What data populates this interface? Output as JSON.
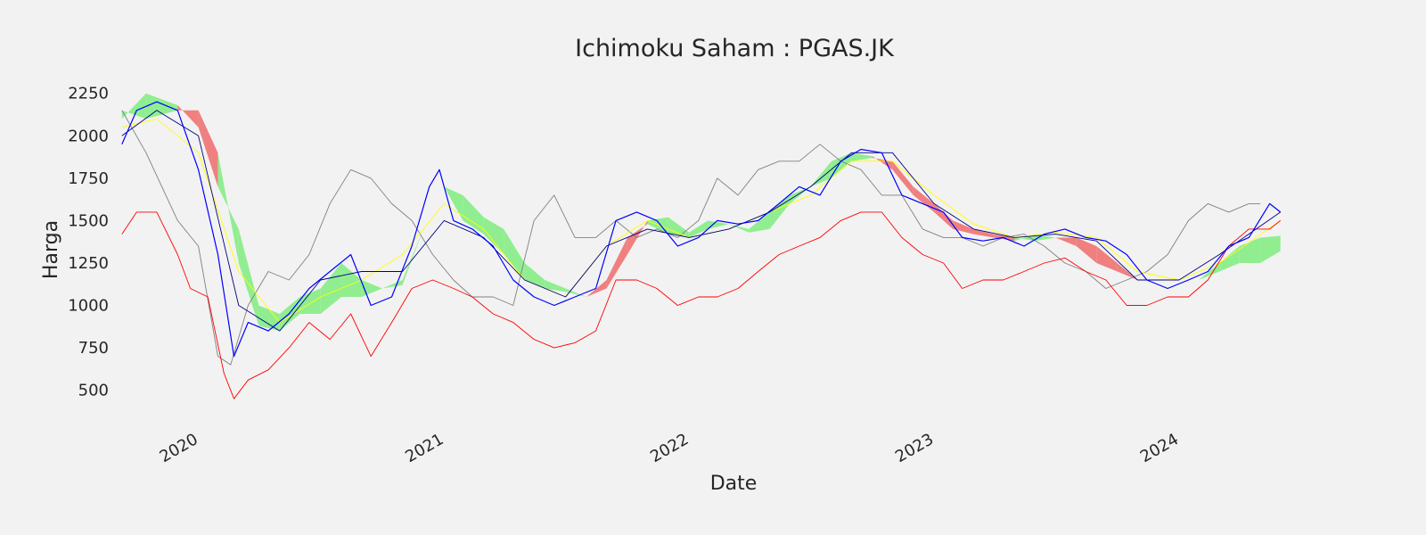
{
  "chart_data": {
    "type": "line",
    "title": "Ichimoku Saham : PGAS.JK",
    "xlabel": "Date",
    "ylabel": "Harga",
    "x_ticks": [
      "2020",
      "2021",
      "2022",
      "2023",
      "2024"
    ],
    "y_ticks": [
      500,
      750,
      1000,
      1250,
      1500,
      1750,
      2000,
      2250
    ],
    "xlim": [
      "2019-10-01",
      "2024-08-01"
    ],
    "ylim": [
      330,
      2380
    ],
    "grid": false,
    "legend": "none",
    "colors": {
      "background": "#f2f2f2",
      "close": "#0000ff",
      "tenkan": "#ffff00",
      "kijun": "#000080",
      "chikou": "#808080",
      "low": "#ff0000",
      "cloud_bull": "#90ee90",
      "cloud_bear": "#f08080"
    },
    "series": [
      {
        "key": "close",
        "x": [
          "2019-10-10",
          "2019-11-01",
          "2019-12-01",
          "2020-01-01",
          "2020-02-01",
          "2020-03-01",
          "2020-03-25",
          "2020-04-15",
          "2020-05-15",
          "2020-06-15",
          "2020-07-15",
          "2020-08-15",
          "2020-09-15",
          "2020-10-15",
          "2020-11-15",
          "2020-12-15",
          "2021-01-10",
          "2021-01-25",
          "2021-02-15",
          "2021-03-15",
          "2021-04-15",
          "2021-05-15",
          "2021-06-15",
          "2021-07-15",
          "2021-08-15",
          "2021-09-15",
          "2021-10-15",
          "2021-11-15",
          "2021-12-15",
          "2022-01-15",
          "2022-02-15",
          "2022-03-15",
          "2022-04-15",
          "2022-05-15",
          "2022-06-15",
          "2022-07-15",
          "2022-08-15",
          "2022-09-15",
          "2022-10-15",
          "2022-11-15",
          "2022-12-15",
          "2023-01-15",
          "2023-02-15",
          "2023-03-15",
          "2023-04-15",
          "2023-05-15",
          "2023-06-15",
          "2023-07-15",
          "2023-08-15",
          "2023-09-15",
          "2023-10-15",
          "2023-11-15",
          "2023-12-15",
          "2024-01-15",
          "2024-02-15",
          "2024-03-15",
          "2024-04-15",
          "2024-05-15",
          "2024-06-15",
          "2024-07-01"
        ],
        "values": [
          1950,
          2150,
          2200,
          2150,
          1800,
          1300,
          700,
          900,
          850,
          950,
          1100,
          1200,
          1300,
          1000,
          1050,
          1350,
          1700,
          1800,
          1500,
          1450,
          1350,
          1150,
          1050,
          1000,
          1050,
          1100,
          1500,
          1550,
          1500,
          1350,
          1400,
          1500,
          1480,
          1500,
          1600,
          1700,
          1650,
          1850,
          1920,
          1900,
          1650,
          1600,
          1550,
          1400,
          1380,
          1400,
          1350,
          1420,
          1450,
          1400,
          1380,
          1300,
          1150,
          1100,
          1150,
          1200,
          1350,
          1400,
          1600,
          1550
        ]
      },
      {
        "key": "tenkan",
        "x": [
          "2019-10-10",
          "2019-12-01",
          "2020-02-01",
          "2020-04-01",
          "2020-06-01",
          "2020-08-01",
          "2020-10-01",
          "2020-12-01",
          "2021-02-01",
          "2021-04-01",
          "2021-06-01",
          "2021-08-01",
          "2021-10-01",
          "2021-12-01",
          "2022-02-01",
          "2022-04-01",
          "2022-06-01",
          "2022-08-01",
          "2022-10-01",
          "2022-12-01",
          "2023-02-01",
          "2023-04-01",
          "2023-06-01",
          "2023-08-01",
          "2023-10-01",
          "2023-12-01",
          "2024-02-01",
          "2024-04-01",
          "2024-07-01"
        ],
        "values": [
          2050,
          2100,
          1900,
          1200,
          900,
          1050,
          1150,
          1300,
          1600,
          1450,
          1150,
          1050,
          1350,
          1500,
          1400,
          1450,
          1550,
          1650,
          1850,
          1850,
          1650,
          1480,
          1400,
          1430,
          1400,
          1200,
          1150,
          1250,
          1500
        ]
      },
      {
        "key": "kijun",
        "x": [
          "2019-10-10",
          "2019-12-01",
          "2020-02-01",
          "2020-04-01",
          "2020-06-01",
          "2020-08-01",
          "2020-10-01",
          "2020-12-01",
          "2021-02-01",
          "2021-04-01",
          "2021-06-01",
          "2021-08-01",
          "2021-10-01",
          "2021-12-01",
          "2022-02-01",
          "2022-04-01",
          "2022-06-01",
          "2022-08-01",
          "2022-10-01",
          "2022-12-01",
          "2023-02-01",
          "2023-04-01",
          "2023-06-01",
          "2023-08-01",
          "2023-10-01",
          "2023-12-01",
          "2024-02-01",
          "2024-04-01",
          "2024-07-01"
        ],
        "values": [
          2000,
          2150,
          2000,
          1000,
          850,
          1150,
          1200,
          1200,
          1500,
          1400,
          1150,
          1050,
          1350,
          1450,
          1400,
          1450,
          1550,
          1700,
          1900,
          1900,
          1600,
          1450,
          1400,
          1420,
          1380,
          1150,
          1150,
          1300,
          1550
        ]
      },
      {
        "key": "chikou",
        "x": [
          "2019-10-10",
          "2019-11-15",
          "2020-01-01",
          "2020-02-01",
          "2020-03-01",
          "2020-03-20",
          "2020-04-15",
          "2020-05-15",
          "2020-06-15",
          "2020-07-15",
          "2020-08-15",
          "2020-09-15",
          "2020-10-15",
          "2020-11-15",
          "2020-12-15",
          "2021-01-15",
          "2021-02-15",
          "2021-03-15",
          "2021-04-15",
          "2021-05-15",
          "2021-06-15",
          "2021-07-15",
          "2021-08-15",
          "2021-09-15",
          "2021-10-15",
          "2021-11-15",
          "2021-12-15",
          "2022-01-15",
          "2022-02-15",
          "2022-03-15",
          "2022-04-15",
          "2022-05-15",
          "2022-06-15",
          "2022-07-15",
          "2022-08-15",
          "2022-09-15",
          "2022-10-15",
          "2022-11-15",
          "2022-12-15",
          "2023-01-15",
          "2023-02-15",
          "2023-03-15",
          "2023-04-15",
          "2023-05-15",
          "2023-06-15",
          "2023-07-15",
          "2023-08-15",
          "2023-09-15",
          "2023-10-15",
          "2023-11-15",
          "2023-12-15",
          "2024-01-15",
          "2024-02-15",
          "2024-03-15",
          "2024-04-15",
          "2024-05-15",
          "2024-06-01"
        ],
        "values": [
          2150,
          1900,
          1500,
          1350,
          700,
          650,
          1000,
          1200,
          1150,
          1300,
          1600,
          1800,
          1750,
          1600,
          1500,
          1300,
          1150,
          1050,
          1050,
          1000,
          1500,
          1650,
          1400,
          1400,
          1500,
          1400,
          1450,
          1400,
          1500,
          1750,
          1650,
          1800,
          1850,
          1850,
          1950,
          1850,
          1800,
          1650,
          1650,
          1450,
          1400,
          1400,
          1350,
          1400,
          1420,
          1350,
          1250,
          1200,
          1100,
          1150,
          1200,
          1300,
          1500,
          1600,
          1550,
          1600,
          1600
        ]
      },
      {
        "key": "low",
        "x": [
          "2019-10-10",
          "2019-11-01",
          "2019-12-01",
          "2020-01-01",
          "2020-01-20",
          "2020-02-15",
          "2020-03-10",
          "2020-03-25",
          "2020-04-15",
          "2020-05-15",
          "2020-06-15",
          "2020-07-15",
          "2020-08-15",
          "2020-09-15",
          "2020-10-15",
          "2020-11-15",
          "2020-12-15",
          "2021-01-15",
          "2021-02-15",
          "2021-03-15",
          "2021-04-15",
          "2021-05-15",
          "2021-06-15",
          "2021-07-15",
          "2021-08-15",
          "2021-09-15",
          "2021-10-15",
          "2021-11-15",
          "2021-12-15",
          "2022-01-15",
          "2022-02-15",
          "2022-03-15",
          "2022-04-15",
          "2022-05-15",
          "2022-06-15",
          "2022-07-15",
          "2022-08-15",
          "2022-09-15",
          "2022-10-15",
          "2022-11-15",
          "2022-12-15",
          "2023-01-15",
          "2023-02-15",
          "2023-03-15",
          "2023-04-15",
          "2023-05-15",
          "2023-06-15",
          "2023-07-15",
          "2023-08-15",
          "2023-09-15",
          "2023-10-15",
          "2023-11-15",
          "2023-12-15",
          "2024-01-15",
          "2024-02-15",
          "2024-03-15",
          "2024-04-15",
          "2024-05-15",
          "2024-06-15",
          "2024-07-01"
        ],
        "values": [
          1420,
          1550,
          1550,
          1300,
          1100,
          1050,
          600,
          450,
          560,
          620,
          750,
          900,
          800,
          950,
          700,
          900,
          1100,
          1150,
          1100,
          1050,
          950,
          900,
          800,
          750,
          780,
          850,
          1150,
          1150,
          1100,
          1000,
          1050,
          1050,
          1100,
          1200,
          1300,
          1350,
          1400,
          1500,
          1550,
          1550,
          1400,
          1300,
          1250,
          1100,
          1150,
          1150,
          1200,
          1250,
          1280,
          1200,
          1150,
          1000,
          1000,
          1050,
          1050,
          1150,
          1350,
          1450,
          1450,
          1500
        ]
      },
      {
        "key": "span_a",
        "x": [
          "2019-10-10",
          "2019-11-15",
          "2020-01-01",
          "2020-02-01",
          "2020-03-01",
          "2020-04-01",
          "2020-05-01",
          "2020-06-01",
          "2020-07-01",
          "2020-08-01",
          "2020-09-01",
          "2020-10-01",
          "2020-11-01",
          "2020-12-01",
          "2021-01-01",
          "2021-02-01",
          "2021-03-01",
          "2021-04-01",
          "2021-05-01",
          "2021-06-01",
          "2021-07-01",
          "2021-08-01",
          "2021-09-01",
          "2021-10-01",
          "2021-11-01",
          "2021-12-01",
          "2022-01-01",
          "2022-02-01",
          "2022-03-01",
          "2022-04-01",
          "2022-05-01",
          "2022-06-01",
          "2022-07-01",
          "2022-08-01",
          "2022-09-01",
          "2022-10-01",
          "2022-11-01",
          "2022-12-01",
          "2023-01-01",
          "2023-02-01",
          "2023-03-01",
          "2023-04-01",
          "2023-05-01",
          "2023-06-01",
          "2023-07-01",
          "2023-08-01",
          "2023-09-01",
          "2023-10-01",
          "2023-11-01",
          "2023-12-01",
          "2024-01-01",
          "2024-02-01",
          "2024-03-01",
          "2024-04-01",
          "2024-05-01",
          "2024-06-01",
          "2024-07-01"
        ],
        "values": [
          2100,
          2250,
          2180,
          2050,
          1700,
          1450,
          1000,
          950,
          1050,
          1100,
          1250,
          1150,
          1100,
          1150,
          1450,
          1700,
          1650,
          1520,
          1450,
          1250,
          1150,
          1100,
          1050,
          1100,
          1300,
          1500,
          1520,
          1430,
          1500,
          1480,
          1450,
          1550,
          1650,
          1700,
          1850,
          1900,
          1880,
          1800,
          1650,
          1550,
          1450,
          1420,
          1400,
          1380,
          1420,
          1400,
          1350,
          1250,
          1200,
          1150,
          1150,
          1150,
          1150,
          1250,
          1350,
          1400,
          1410
        ]
      },
      {
        "key": "span_b",
        "x": [
          "2019-10-10",
          "2019-11-15",
          "2020-01-01",
          "2020-02-01",
          "2020-03-01",
          "2020-04-01",
          "2020-05-01",
          "2020-06-01",
          "2020-07-01",
          "2020-08-01",
          "2020-09-01",
          "2020-10-01",
          "2020-11-01",
          "2020-12-01",
          "2021-01-01",
          "2021-02-01",
          "2021-03-01",
          "2021-04-01",
          "2021-05-01",
          "2021-06-01",
          "2021-07-01",
          "2021-08-01",
          "2021-09-01",
          "2021-10-01",
          "2021-11-01",
          "2021-12-01",
          "2022-01-01",
          "2022-02-01",
          "2022-03-01",
          "2022-04-01",
          "2022-05-01",
          "2022-06-01",
          "2022-07-01",
          "2022-08-01",
          "2022-09-01",
          "2022-10-01",
          "2022-11-01",
          "2022-12-01",
          "2023-01-01",
          "2023-02-01",
          "2023-03-01",
          "2023-04-01",
          "2023-05-01",
          "2023-06-01",
          "2023-07-01",
          "2023-08-01",
          "2023-09-01",
          "2023-10-01",
          "2023-11-01",
          "2023-12-01",
          "2024-01-01",
          "2024-02-01",
          "2024-03-01",
          "2024-04-01",
          "2024-05-01",
          "2024-06-01",
          "2024-07-01"
        ],
        "values": [
          2150,
          2100,
          2150,
          2150,
          1900,
          1250,
          880,
          850,
          950,
          950,
          1050,
          1050,
          1100,
          1120,
          1450,
          1700,
          1500,
          1420,
          1300,
          1150,
          1100,
          1080,
          1050,
          1150,
          1400,
          1480,
          1420,
          1400,
          1450,
          1480,
          1430,
          1450,
          1600,
          1700,
          1750,
          1850,
          1870,
          1850,
          1700,
          1600,
          1500,
          1450,
          1420,
          1400,
          1380,
          1400,
          1400,
          1350,
          1250,
          1150,
          1150,
          1150,
          1150,
          1200,
          1250,
          1250,
          1320
        ]
      }
    ]
  }
}
